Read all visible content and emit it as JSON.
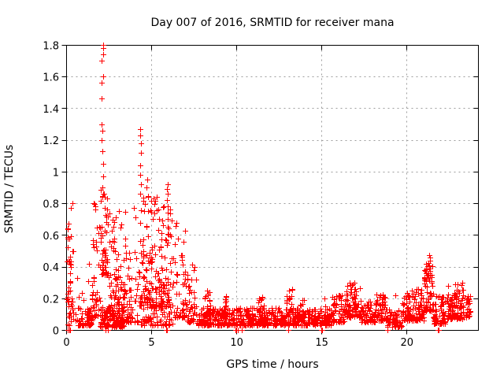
{
  "chart_data": {
    "type": "scatter",
    "title": "Day 007 of 2016, SRMTID for receiver mana",
    "xlabel": "GPS time / hours",
    "ylabel": "SRMTID / TECUs",
    "xlim": [
      0,
      24.2
    ],
    "ylim": [
      0,
      1.8
    ],
    "grid": true,
    "legend_position": "none",
    "x_ticks": {
      "values": [
        0,
        5,
        10,
        15,
        20
      ],
      "labels": [
        "0",
        "5",
        "10",
        "15",
        "20"
      ]
    },
    "y_ticks": {
      "values": [
        0,
        0.2,
        0.4,
        0.6,
        0.8,
        1.0,
        1.2,
        1.4,
        1.6,
        1.8
      ],
      "labels": [
        "0",
        "0.2",
        "0.4",
        "0.6",
        "0.8",
        "1",
        "1.2",
        "1.4",
        "1.6",
        "1.8"
      ]
    },
    "colors": {
      "marker": "#ff0000",
      "grid": "#9c9c9c",
      "frame": "#000000",
      "background": "#ffffff",
      "text": "#000000"
    },
    "series": [
      {
        "name": "SRMTID",
        "marker": "plus",
        "color": "#ff0000",
        "segment_format": "[hour_start, hour_end, tecu_min, tecu_max, point_count, low_bias_exponent]",
        "band_segments": [
          [
            0.03,
            0.45,
            0.15,
            0.85,
            40,
            1.6
          ],
          [
            0.05,
            0.45,
            0.03,
            0.15,
            12,
            1.0
          ],
          [
            0.5,
            1.1,
            0.03,
            0.3,
            25,
            2.5
          ],
          [
            1.1,
            1.5,
            0.03,
            0.14,
            45,
            1.3
          ],
          [
            1.5,
            2.0,
            0.08,
            0.8,
            45,
            2.2
          ],
          [
            2.0,
            2.45,
            0.35,
            0.9,
            55,
            1.7
          ],
          [
            2.0,
            3.4,
            0.02,
            0.15,
            150,
            1.4
          ],
          [
            2.45,
            3.5,
            0.15,
            0.75,
            80,
            2.0
          ],
          [
            3.5,
            4.25,
            0.05,
            0.5,
            55,
            2.2
          ],
          [
            4.3,
            5.35,
            0.15,
            0.85,
            110,
            2.0
          ],
          [
            4.4,
            5.4,
            0.03,
            0.15,
            40,
            1.4
          ],
          [
            5.4,
            6.3,
            0.15,
            0.8,
            90,
            1.9
          ],
          [
            5.5,
            6.3,
            0.03,
            0.15,
            30,
            1.4
          ],
          [
            6.3,
            7.05,
            0.08,
            0.7,
            55,
            2.4
          ],
          [
            7.05,
            7.65,
            0.05,
            0.42,
            45,
            2.2
          ],
          [
            7.65,
            15.6,
            0.03,
            0.14,
            600,
            1.5
          ],
          [
            8.1,
            8.5,
            0.1,
            0.25,
            20,
            1.5
          ],
          [
            9.3,
            9.5,
            0.08,
            0.22,
            10,
            1.5
          ],
          [
            11.3,
            11.7,
            0.1,
            0.22,
            18,
            1.5
          ],
          [
            12.9,
            13.35,
            0.1,
            0.26,
            20,
            1.5
          ],
          [
            13.7,
            14.05,
            0.08,
            0.2,
            12,
            1.5
          ],
          [
            15.1,
            15.5,
            0.06,
            0.2,
            15,
            1.5
          ],
          [
            15.6,
            16.35,
            0.05,
            0.22,
            60,
            1.8
          ],
          [
            16.35,
            17.35,
            0.08,
            0.3,
            95,
            1.6
          ],
          [
            17.35,
            18.2,
            0.05,
            0.18,
            60,
            1.8
          ],
          [
            18.2,
            18.85,
            0.06,
            0.23,
            55,
            1.7
          ],
          [
            18.85,
            19.75,
            0.02,
            0.13,
            70,
            1.6
          ],
          [
            19.75,
            21.05,
            0.06,
            0.26,
            115,
            1.8
          ],
          [
            21.05,
            21.55,
            0.12,
            0.42,
            60,
            1.6
          ],
          [
            21.55,
            22.35,
            0.04,
            0.22,
            75,
            1.9
          ],
          [
            22.35,
            23.45,
            0.07,
            0.3,
            110,
            1.9
          ],
          [
            23.45,
            23.75,
            0.08,
            0.22,
            25,
            1.5
          ]
        ],
        "spike_columns": [
          {
            "x": 2.13,
            "jitter": 0.07,
            "ys": [
              1.8,
              1.78,
              1.74,
              1.7,
              1.6,
              1.56,
              1.46,
              1.3,
              1.26,
              1.2,
              1.13,
              1.05,
              0.97,
              0.9,
              0.84
            ]
          },
          {
            "x": 4.33,
            "jitter": 0.05,
            "ys": [
              1.27,
              1.23,
              1.18,
              1.12,
              1.04,
              0.98,
              0.92,
              0.86
            ]
          },
          {
            "x": 5.97,
            "jitter": 0.05,
            "ys": [
              0.92,
              0.89,
              0.86,
              0.82,
              0.78,
              0.74,
              0.7,
              0.65,
              0.6,
              0.55
            ]
          },
          {
            "x": 21.33,
            "jitter": 0.07,
            "ys": [
              0.47,
              0.455,
              0.44,
              0.425,
              0.41,
              0.39,
              0.375,
              0.36,
              0.345,
              0.33
            ]
          }
        ],
        "zero_clusters": [
          {
            "x": 0.1,
            "n": 2,
            "spread": 0.04
          },
          {
            "x": 0.22,
            "n": 2,
            "spread": 0.05
          },
          {
            "x": 2.3,
            "n": 2,
            "spread": 0.03
          },
          {
            "x": 2.44,
            "n": 2,
            "spread": 0.03
          },
          {
            "x": 5.9,
            "n": 9,
            "spread": 0.05
          },
          {
            "x": 10.05,
            "n": 3,
            "spread": 0.12
          },
          {
            "x": 10.3,
            "n": 2,
            "spread": 0.05
          },
          {
            "x": 13.05,
            "n": 1,
            "spread": 0.02
          },
          {
            "x": 15.02,
            "n": 8,
            "spread": 0.04
          },
          {
            "x": 18.9,
            "n": 1,
            "spread": 0.02
          },
          {
            "x": 21.95,
            "n": 2,
            "spread": 0.25
          }
        ],
        "extra_points": [
          [
            0.65,
            0.33
          ],
          [
            1.28,
            0.31
          ],
          [
            1.35,
            0.42
          ],
          [
            4.0,
            0.77
          ],
          [
            4.05,
            0.71
          ],
          [
            4.7,
            0.9
          ],
          [
            4.75,
            0.95
          ],
          [
            8.3,
            0.25
          ],
          [
            9.4,
            0.21
          ],
          [
            11.5,
            0.21
          ],
          [
            13.1,
            0.25
          ],
          [
            16.95,
            0.3
          ],
          [
            19.35,
            0.22
          ],
          [
            20.3,
            0.25
          ],
          [
            23.0,
            0.29
          ]
        ]
      }
    ]
  }
}
